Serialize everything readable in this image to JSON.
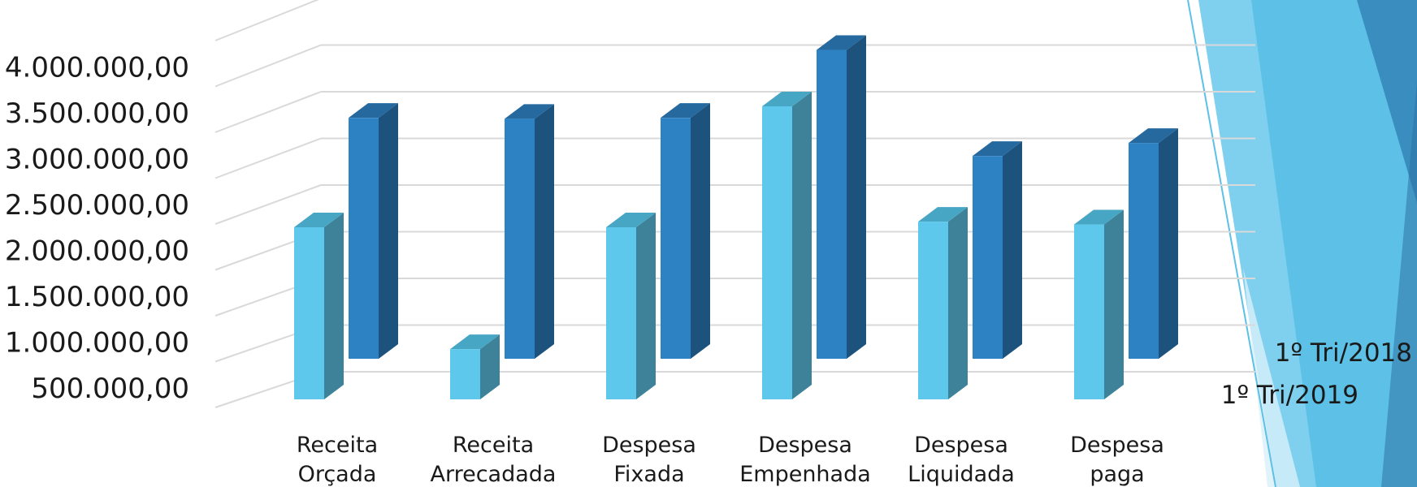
{
  "chart_data": {
    "type": "bar",
    "categories": [
      [
        "Receita",
        "Orçada"
      ],
      [
        "Receita",
        "Arrecadada"
      ],
      [
        "Despesa",
        "Fixada"
      ],
      [
        "Despesa",
        "Empenhada"
      ],
      [
        "Despesa",
        "Liquidada"
      ],
      [
        "Despesa",
        "paga"
      ]
    ],
    "series": [
      {
        "name": "1º Tri/2019",
        "values": [
          2350000,
          1040000,
          2350000,
          3650000,
          2410000,
          2380000
        ]
      },
      {
        "name": "1º Tri/2018",
        "values": [
          3090000,
          3080000,
          3090000,
          3820000,
          2680000,
          2820000
        ]
      }
    ],
    "ytick_values": [
      500000,
      1000000,
      1500000,
      2000000,
      2500000,
      3000000,
      3500000,
      4000000
    ],
    "ytick_labels": [
      "500.000,00",
      "1.000.000,00",
      "1.500.000,00",
      "2.000.000,00",
      "2.500.000,00",
      "3.000.000,00",
      "3.500.000,00",
      "4.000.000,00"
    ],
    "ylim": [
      0,
      4500000
    ],
    "grid": true,
    "three_d": true,
    "colors": {
      "series_front": "#5ec8ec",
      "series_front_side": "#3e8299",
      "series_front_top": "#47a6c4",
      "series_back": "#2d82c4",
      "series_back_side": "#1d527c",
      "series_back_top": "#25699f",
      "gridline": "#d9d9d9"
    }
  },
  "decoration": {
    "panel_colors": [
      "#7fd0ee",
      "#5dc0e6",
      "#3a8dbf",
      "#2d73a4",
      "#d8f0fa"
    ]
  }
}
